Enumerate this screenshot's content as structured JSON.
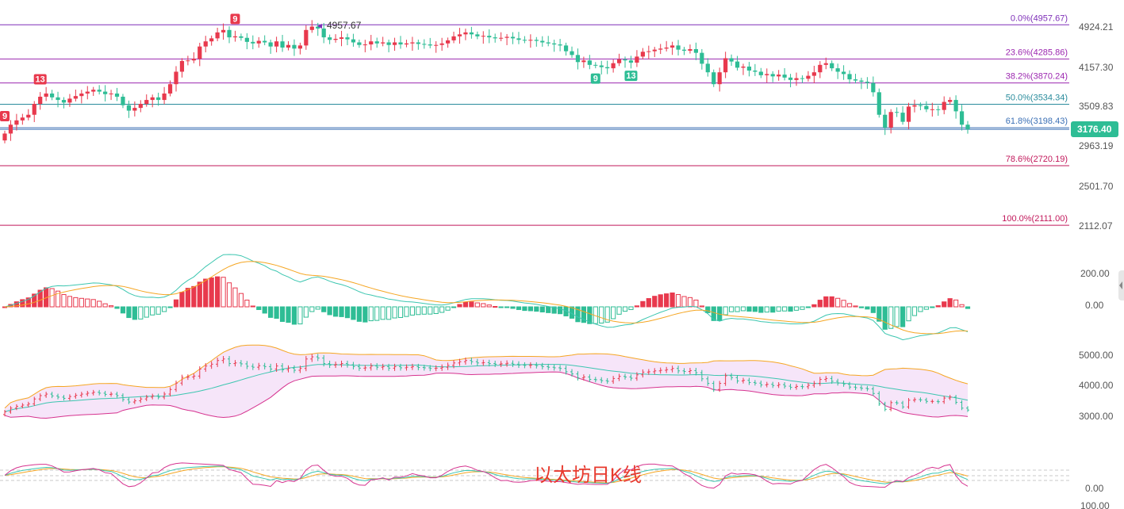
{
  "colors": {
    "up": "#e8394d",
    "down": "#2ebd95",
    "accent": "#19a6ef"
  },
  "chart_data": [
    {
      "type": "candlestick",
      "panel": "main",
      "y_ticks": [
        "4924.21",
        "4157.30",
        "3509.83",
        "2963.19",
        "2501.70",
        "2112.07"
      ],
      "current_price": "3176.40",
      "high_marker": "4957.67",
      "fib_levels": [
        {
          "label": "0.0%(4957.67)",
          "value": 4957.67,
          "color": "#7e2fb8"
        },
        {
          "label": "23.6%(4285.86)",
          "value": 4285.86,
          "color": "#9c27b0"
        },
        {
          "label": "38.2%(3870.24)",
          "value": 3870.24,
          "color": "#9c27b0"
        },
        {
          "label": "50.0%(3534.34)",
          "value": 3534.34,
          "color": "#2a8c9c"
        },
        {
          "label": "61.8%(3198.43)",
          "value": 3198.43,
          "color": "#3a6fb5"
        },
        {
          "label": "78.6%(2720.19)",
          "value": 2720.19,
          "color": "#c2185b"
        },
        {
          "label": "100.0%(2111.00)",
          "value": 2111.0,
          "color": "#c2185b"
        }
      ],
      "markers": [
        {
          "label": "9",
          "index": 0,
          "kind": "up"
        },
        {
          "label": "13",
          "index": 6,
          "kind": "up"
        },
        {
          "label": "9",
          "index": 39,
          "kind": "up"
        },
        {
          "label": "9",
          "index": 100,
          "kind": "down"
        },
        {
          "label": "13",
          "index": 106,
          "kind": "down"
        }
      ],
      "closes": [
        3120,
        3240,
        3300,
        3340,
        3380,
        3540,
        3650,
        3700,
        3640,
        3600,
        3560,
        3620,
        3660,
        3700,
        3730,
        3760,
        3730,
        3690,
        3700,
        3650,
        3520,
        3440,
        3480,
        3540,
        3600,
        3640,
        3600,
        3700,
        3850,
        4060,
        4250,
        4260,
        4290,
        4520,
        4620,
        4680,
        4800,
        4850,
        4700,
        4720,
        4690,
        4610,
        4580,
        4630,
        4600,
        4520,
        4620,
        4500,
        4550,
        4480,
        4540,
        4850,
        4920,
        4880,
        4700,
        4650,
        4670,
        4700,
        4660,
        4600,
        4550,
        4560,
        4620,
        4580,
        4600,
        4550,
        4600,
        4560,
        4580,
        4600,
        4570,
        4560,
        4540,
        4550,
        4580,
        4640,
        4720,
        4760,
        4800,
        4760,
        4720,
        4730,
        4700,
        4680,
        4690,
        4710,
        4680,
        4650,
        4640,
        4650,
        4630,
        4600,
        4580,
        4560,
        4540,
        4430,
        4360,
        4230,
        4260,
        4180,
        4170,
        4140,
        4120,
        4210,
        4280,
        4260,
        4220,
        4330,
        4420,
        4430,
        4460,
        4480,
        4500,
        4540,
        4460,
        4440,
        4470,
        4400,
        4200,
        4050,
        3850,
        4050,
        4300,
        4240,
        4130,
        4150,
        4080,
        4060,
        4000,
        4020,
        3980,
        4010,
        3960,
        3920,
        3950,
        3940,
        3990,
        4050,
        4180,
        4210,
        4120,
        4060,
        4020,
        3930,
        3910,
        3890,
        3870,
        3720,
        3380,
        3200,
        3420,
        3410,
        3280,
        3500,
        3520,
        3510,
        3460,
        3460,
        3450,
        3570,
        3600,
        3430,
        3240,
        3176.4
      ]
    },
    {
      "type": "bar",
      "panel": "macd",
      "y_ticks": [
        "200.00",
        "0.00"
      ]
    },
    {
      "type": "line",
      "panel": "bollinger",
      "y_ticks": [
        "5000.00",
        "4000.00",
        "3000.00"
      ]
    },
    {
      "type": "line",
      "panel": "kdj",
      "y_ticks": [
        "0.00",
        "100.00"
      ]
    }
  ],
  "watermark": "以太坊日K线"
}
